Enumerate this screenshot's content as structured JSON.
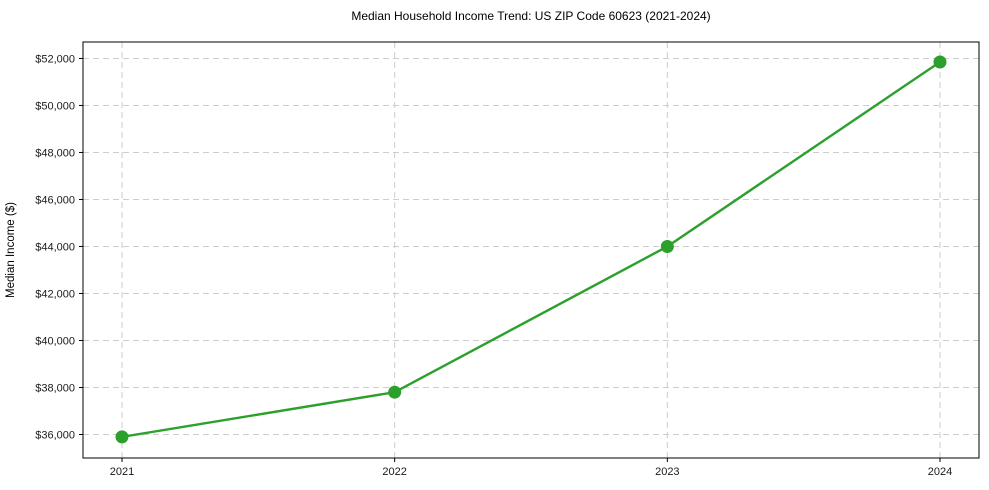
{
  "page": {
    "title": "Median Household Income Trend: US ZIP Code 60623 (2021-2024)"
  },
  "chart_data": {
    "type": "line",
    "title": "Median Household Income Trend: US ZIP Code 60623 (2021-2024)",
    "xlabel": "",
    "ylabel": "Median Income ($)",
    "categories": [
      "2021",
      "2022",
      "2023",
      "2024"
    ],
    "series": [
      {
        "name": "Median household income",
        "values": [
          35900,
          37800,
          44000,
          51850
        ],
        "color": "#2ca02c",
        "marker": "circle"
      }
    ],
    "yticks": [
      36000,
      38000,
      40000,
      42000,
      44000,
      46000,
      48000,
      50000,
      52000
    ],
    "ytick_labels": [
      "$36,000",
      "$38,000",
      "$40,000",
      "$42,000",
      "$44,000",
      "$46,000",
      "$48,000",
      "$50,000",
      "$52,000"
    ],
    "ylim": [
      35000,
      52700
    ],
    "grid": true,
    "grid_style": "dashed",
    "legend_position": "none",
    "colors": {
      "line": "#2ca02c",
      "grid": "#cdcdcd",
      "axis": "#000000",
      "text": "#1a1a1a",
      "background": "#ffffff"
    }
  }
}
